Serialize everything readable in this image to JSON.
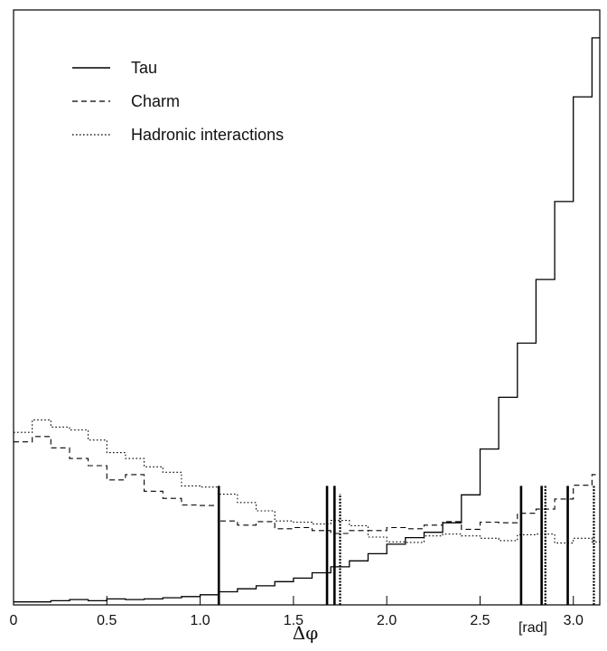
{
  "chart_data": {
    "type": "line",
    "subtype": "step-histogram",
    "title": "",
    "xlabel": "Δφ",
    "x_unit": "[rad]",
    "ylabel": "",
    "xlim": [
      0,
      3.1416
    ],
    "ylim": [
      0,
      1.0
    ],
    "x_ticks": [
      {
        "value": 0,
        "label": "0"
      },
      {
        "value": 0.5,
        "label": "0.5"
      },
      {
        "value": 1.0,
        "label": "1.0"
      },
      {
        "value": 1.5,
        "label": "1.5"
      },
      {
        "value": 2.0,
        "label": "2.0"
      },
      {
        "value": 2.5,
        "label": "2.5"
      },
      {
        "value": 3.0,
        "label": "3.0"
      }
    ],
    "grid": false,
    "legend_position": "top-left",
    "bin_edges": [
      0,
      0.1,
      0.2,
      0.3,
      0.4,
      0.5,
      0.6,
      0.7,
      0.8,
      0.9,
      1.0,
      1.1,
      1.2,
      1.3,
      1.4,
      1.5,
      1.6,
      1.7,
      1.8,
      1.9,
      2.0,
      2.1,
      2.2,
      2.3,
      2.4,
      2.5,
      2.6,
      2.7,
      2.8,
      2.9,
      3.0,
      3.1,
      3.1416
    ],
    "series": [
      {
        "name": "Tau",
        "style": "solid",
        "values": [
          0.005,
          0.005,
          0.007,
          0.009,
          0.007,
          0.01,
          0.009,
          0.01,
          0.012,
          0.014,
          0.017,
          0.022,
          0.027,
          0.032,
          0.039,
          0.045,
          0.054,
          0.064,
          0.074,
          0.086,
          0.102,
          0.113,
          0.122,
          0.138,
          0.185,
          0.262,
          0.349,
          0.44,
          0.547,
          0.678,
          0.854,
          0.953,
          0.953
        ]
      },
      {
        "name": "Charm",
        "style": "dashed",
        "values": [
          0.274,
          0.283,
          0.264,
          0.246,
          0.234,
          0.21,
          0.219,
          0.191,
          0.179,
          0.168,
          0.167,
          0.141,
          0.134,
          0.14,
          0.128,
          0.13,
          0.125,
          0.12,
          0.125,
          0.125,
          0.13,
          0.128,
          0.134,
          0.14,
          0.127,
          0.139,
          0.138,
          0.154,
          0.161,
          0.178,
          0.201,
          0.219,
          0.219
        ]
      },
      {
        "name": "Hadronic interactions",
        "style": "dotted",
        "values": [
          0.29,
          0.311,
          0.299,
          0.294,
          0.277,
          0.256,
          0.246,
          0.232,
          0.223,
          0.2,
          0.198,
          0.186,
          0.172,
          0.158,
          0.141,
          0.139,
          0.136,
          0.142,
          0.133,
          0.114,
          0.106,
          0.105,
          0.116,
          0.119,
          0.116,
          0.112,
          0.108,
          0.118,
          0.119,
          0.104,
          0.112,
          0.106,
          0.106
        ]
      }
    ],
    "event_markers": [
      {
        "x": 1.1,
        "height": 0.2,
        "style": "solid"
      },
      {
        "x": 1.68,
        "height": 0.2,
        "style": "solid"
      },
      {
        "x": 1.72,
        "height": 0.2,
        "style": "solid"
      },
      {
        "x": 1.75,
        "height": 0.187,
        "style": "dotted"
      },
      {
        "x": 2.72,
        "height": 0.2,
        "style": "solid"
      },
      {
        "x": 2.83,
        "height": 0.2,
        "style": "solid"
      },
      {
        "x": 2.85,
        "height": 0.2,
        "style": "dotted"
      },
      {
        "x": 2.97,
        "height": 0.2,
        "style": "solid"
      },
      {
        "x": 3.11,
        "height": 0.2,
        "style": "dotted"
      }
    ]
  }
}
